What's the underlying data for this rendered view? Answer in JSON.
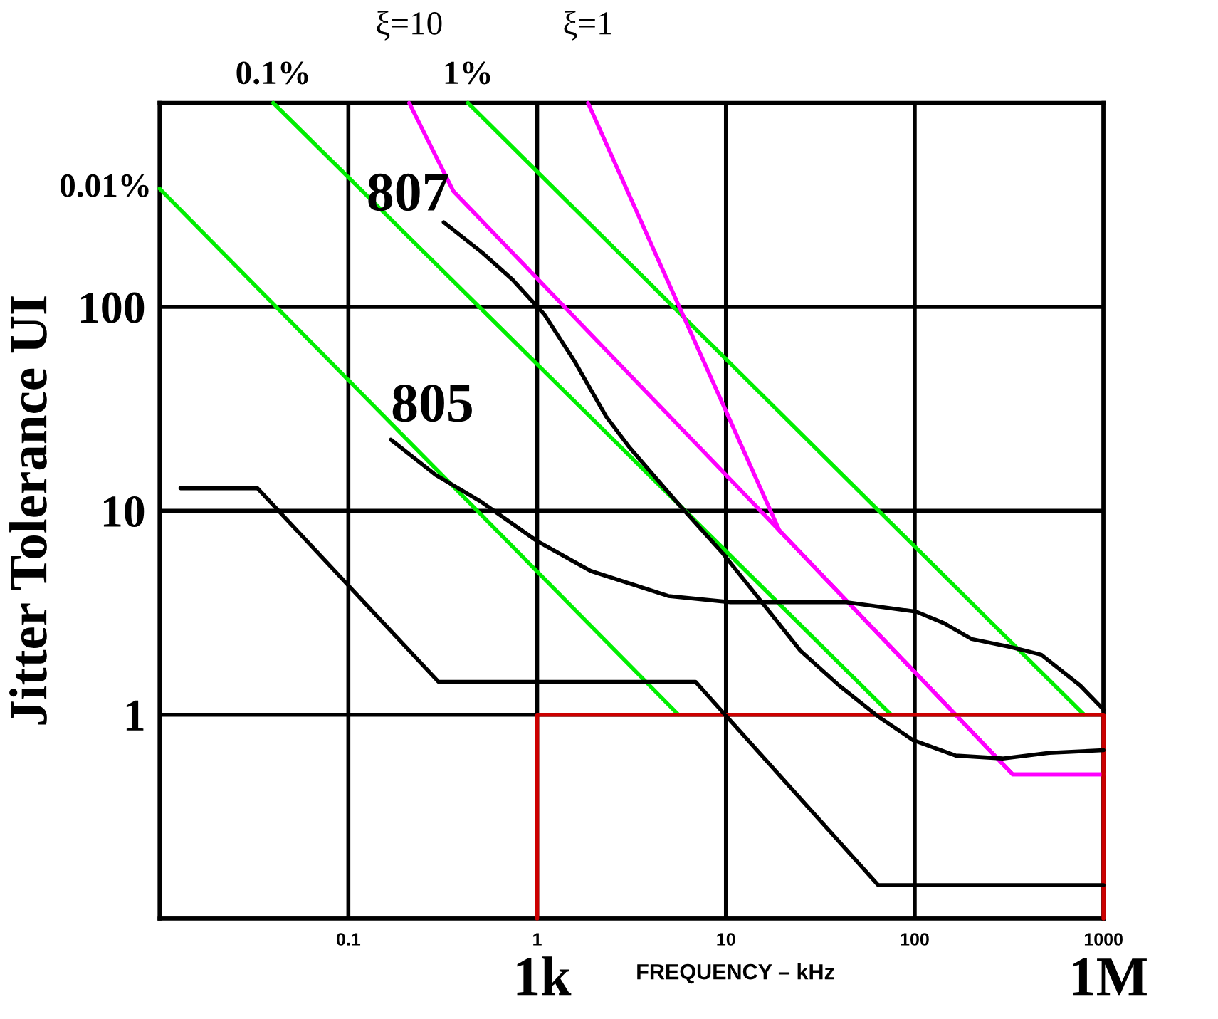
{
  "chart_data": {
    "type": "line",
    "xlabel": "FREQUENCY – kHz",
    "ylabel": "Jitter Tolerance UI",
    "log": "xy",
    "grid": true,
    "marker": "none",
    "line_style": "solid",
    "xlim": [
      0.01,
      1000
    ],
    "xticks": [
      {
        "value": 0.01,
        "label": null
      },
      0.1,
      1,
      10,
      100,
      1000
    ],
    "ylim": [
      0.1,
      1000
    ],
    "yticks": [
      {
        "value": 0.1,
        "label": null
      },
      1,
      10,
      100,
      {
        "value": 1000,
        "label": null
      }
    ],
    "series": [
      {
        "name": "0.01%",
        "color": "#00ee00",
        "x": [
          0.01,
          5.6
        ],
        "values": [
          380,
          1
        ]
      },
      {
        "name": "0.1%",
        "color": "#00ee00",
        "x": [
          0.04,
          75
        ],
        "values": [
          1000,
          1
        ]
      },
      {
        "name": "1%",
        "color": "#00ee00",
        "x": [
          0.43,
          790
        ],
        "values": [
          1000,
          1
        ]
      },
      {
        "name": "ξ=10",
        "color": "#ff00ff",
        "x": [
          0.21,
          0.36,
          19.2,
          330,
          1000
        ],
        "values": [
          1000,
          369,
          8.0,
          0.51,
          0.51
        ]
      },
      {
        "name": "ξ=1",
        "color": "#ff00ff",
        "x": [
          1.86,
          19.2,
          330,
          1000
        ],
        "values": [
          1000,
          8.0,
          0.51,
          0.51
        ]
      },
      {
        "color": "#cc0000",
        "x": [
          1,
          1,
          1000,
          1000
        ],
        "values": [
          0.1,
          1,
          1,
          0.1
        ]
      },
      {
        "color": "#000000",
        "x": [
          0.0129,
          0.033,
          0.3,
          6.9,
          64,
          1000
        ],
        "values": [
          12.9,
          12.9,
          1.45,
          1.45,
          0.146,
          0.146
        ]
      },
      {
        "color": "#000000",
        "x": [
          0.32,
          0.51,
          0.74,
          1.09,
          1.58,
          2.32,
          3.09,
          5.5,
          9.6,
          15.5,
          24.8,
          39.8,
          64,
          98,
          165,
          292,
          515,
          1000
        ],
        "values": [
          260,
          185,
          136,
          92,
          54,
          29,
          20.4,
          11,
          6.2,
          3.56,
          2.06,
          1.39,
          0.98,
          0.75,
          0.63,
          0.61,
          0.65,
          0.67
        ]
      },
      {
        "color": "#000000",
        "x": [
          0.168,
          0.29,
          0.51,
          1.0,
          1.92,
          4.95,
          10.6,
          18.6,
          43.6,
          102,
          143,
          200,
          320,
          468,
          753,
          1000
        ],
        "values": [
          22.3,
          15,
          11,
          7.1,
          5.07,
          3.82,
          3.56,
          3.56,
          3.56,
          3.2,
          2.81,
          2.35,
          2.15,
          1.97,
          1.39,
          1.06
        ]
      }
    ],
    "annotations": [
      "807",
      "805",
      "1k",
      "1M"
    ]
  }
}
